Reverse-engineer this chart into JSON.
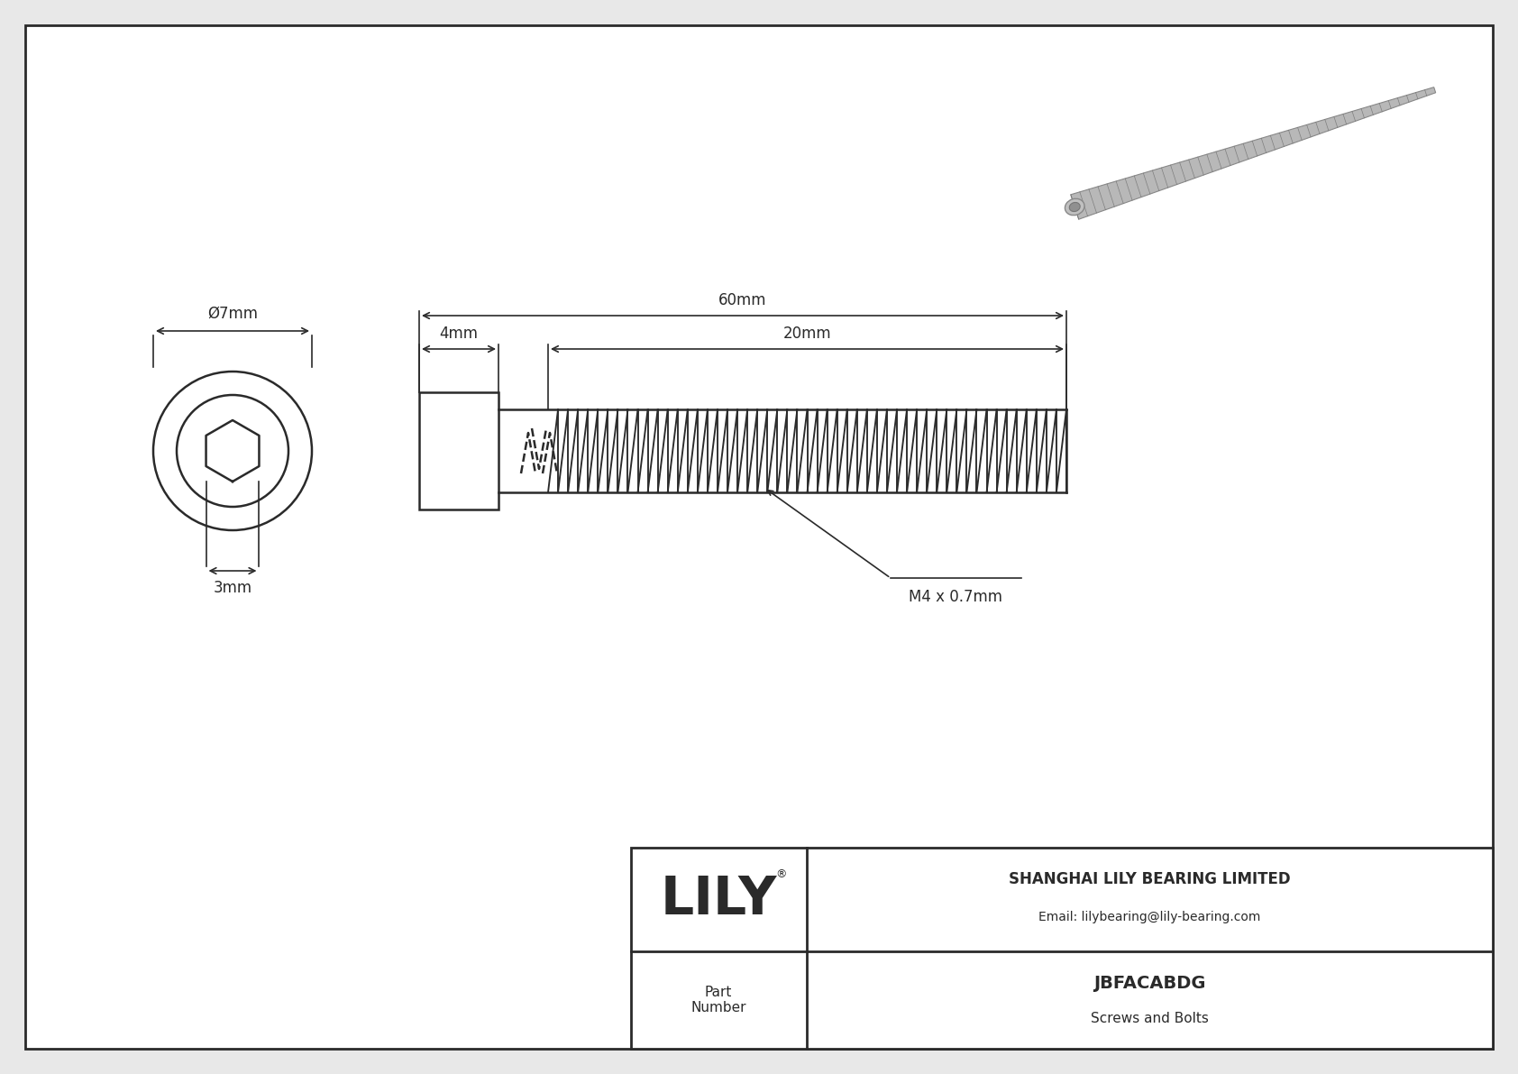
{
  "bg_color": "#e8e8e8",
  "drawing_bg": "#ffffff",
  "line_color": "#2a2a2a",
  "title": "JBFACABDG",
  "subtitle": "Screws and Bolts",
  "company": "SHANGHAI LILY BEARING LIMITED",
  "email": "Email: lilybearing@lily-bearing.com",
  "part_label": "Part\nNumber",
  "logo_text": "LILY",
  "dim_head_w": "Ø7mm",
  "dim_head_h": "3mm",
  "dim_shaft_head": "4mm",
  "dim_total": "60mm",
  "dim_thread": "20mm",
  "dim_thread_label": "M4 x 0.7mm",
  "font_size_dim": 12,
  "font_size_company": 12,
  "font_size_email": 10,
  "font_size_title": 14,
  "font_size_logo": 42,
  "font_size_part": 11
}
